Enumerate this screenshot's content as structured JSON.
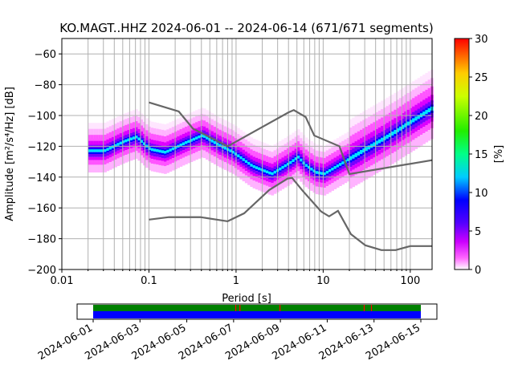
{
  "chart_data": {
    "type": "heatmap",
    "title": "KO.MAGT..HHZ   2024-06-01 -- 2024-06-14  (671/671 segments)",
    "xlabel": "Period [s]",
    "ylabel": "Amplitude [m²/s⁴/Hz] [dB]",
    "xscale": "log",
    "xlim": [
      0.01,
      178
    ],
    "ylim": [
      -200,
      -50
    ],
    "xticks": [
      {
        "v": 0.01,
        "label": "0.01"
      },
      {
        "v": 0.1,
        "label": "0.1"
      },
      {
        "v": 1,
        "label": "1"
      },
      {
        "v": 10,
        "label": "10"
      },
      {
        "v": 100,
        "label": "100"
      }
    ],
    "yticks": [
      -200,
      -180,
      -160,
      -140,
      -120,
      -100,
      -80,
      -60
    ],
    "grid": true,
    "colorbar": {
      "label": "[%]",
      "min": 0,
      "max": 30,
      "ticks": [
        0,
        5,
        10,
        15,
        20,
        25,
        30
      ]
    },
    "mode_curve": [
      [
        0.02,
        -123
      ],
      [
        0.03,
        -123
      ],
      [
        0.05,
        -117
      ],
      [
        0.07,
        -114
      ],
      [
        0.1,
        -122
      ],
      [
        0.15,
        -124
      ],
      [
        0.25,
        -118
      ],
      [
        0.4,
        -113
      ],
      [
        0.6,
        -119
      ],
      [
        0.9,
        -124
      ],
      [
        1.5,
        -133
      ],
      [
        2.5,
        -138
      ],
      [
        4,
        -131
      ],
      [
        5,
        -127
      ],
      [
        6,
        -132
      ],
      [
        8,
        -137
      ],
      [
        10,
        -138
      ],
      [
        15,
        -132
      ],
      [
        30,
        -122
      ],
      [
        60,
        -112
      ],
      [
        100,
        -104
      ],
      [
        178,
        -95
      ]
    ],
    "nhnm": [
      [
        0.1,
        -91.5
      ],
      [
        0.22,
        -97.4
      ],
      [
        0.32,
        -108.5
      ],
      [
        0.8,
        -120
      ],
      [
        4,
        -98
      ],
      [
        4.6,
        -96.5
      ],
      [
        6.3,
        -101
      ],
      [
        7.9,
        -113
      ],
      [
        15.4,
        -120
      ],
      [
        20,
        -138
      ],
      [
        178,
        -129
      ]
    ],
    "nlnm": [
      [
        0.1,
        -167.6
      ],
      [
        0.17,
        -166
      ],
      [
        0.39,
        -166
      ],
      [
        0.8,
        -168.7
      ],
      [
        1.24,
        -163.5
      ],
      [
        2.4,
        -148.4
      ],
      [
        3.9,
        -141
      ],
      [
        4.4,
        -140.5
      ],
      [
        5.8,
        -148.8
      ],
      [
        9.5,
        -162.4
      ],
      [
        11.7,
        -165.5
      ],
      [
        14.8,
        -161.9
      ],
      [
        20.8,
        -177
      ],
      [
        30.5,
        -184.3
      ],
      [
        46.6,
        -187.4
      ],
      [
        68,
        -187.4
      ],
      [
        100,
        -184.8
      ],
      [
        178,
        -184.8
      ]
    ],
    "timeline": {
      "start_day": 0,
      "end_day": 14,
      "tick_labels": [
        "2024-06-01",
        "2024-06-03",
        "2024-06-05",
        "2024-06-07",
        "2024-06-09",
        "2024-06-11",
        "2024-06-13",
        "2024-06-15"
      ],
      "red_marks_day": [
        6.07,
        6.25,
        7.96,
        11.56,
        11.87
      ],
      "colors": {
        "coverage": "#008000",
        "data": "#0000ff",
        "gap": "#ff0000"
      }
    }
  }
}
